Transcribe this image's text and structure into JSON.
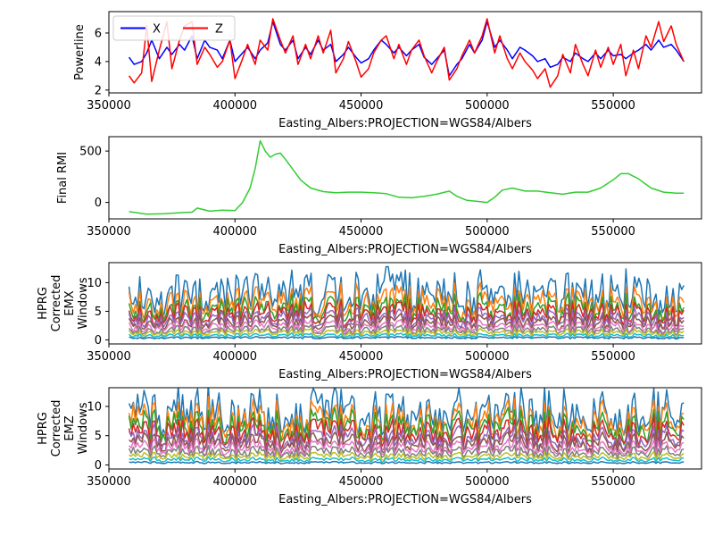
{
  "chart_data": [
    {
      "type": "line",
      "title": "",
      "xlabel": "Easting_Albers:PROJECTION=WGS84/Albers",
      "ylabel_lines": [
        "Powerline"
      ],
      "xlim": [
        350000,
        585000
      ],
      "ylim": [
        1.8,
        7.5
      ],
      "xticks": [
        350000,
        400000,
        450000,
        500000,
        550000
      ],
      "yticks": [
        2,
        4,
        6
      ],
      "legend": {
        "position": "top-left",
        "ncol": 2
      },
      "series": [
        {
          "name": "X",
          "color": "#0000ff",
          "x": [
            358000,
            360000,
            363000,
            365000,
            367000,
            370000,
            373000,
            375000,
            378000,
            380000,
            383000,
            385000,
            388000,
            390000,
            393000,
            395000,
            398000,
            400000,
            403000,
            405000,
            408000,
            410000,
            413000,
            415000,
            418000,
            420000,
            423000,
            425000,
            428000,
            430000,
            433000,
            435000,
            438000,
            440000,
            443000,
            445000,
            448000,
            450000,
            453000,
            455000,
            458000,
            460000,
            463000,
            465000,
            468000,
            470000,
            473000,
            475000,
            478000,
            480000,
            483000,
            485000,
            488000,
            490000,
            493000,
            495000,
            498000,
            500000,
            503000,
            505000,
            508000,
            510000,
            513000,
            515000,
            518000,
            520000,
            523000,
            525000,
            528000,
            530000,
            533000,
            535000,
            538000,
            540000,
            543000,
            545000,
            548000,
            550000,
            553000,
            555000,
            558000,
            560000,
            563000,
            565000,
            568000,
            570000,
            573000,
            575000,
            578000
          ],
          "y": [
            4.3,
            3.8,
            4.0,
            4.6,
            5.5,
            4.2,
            5.0,
            4.5,
            5.2,
            4.8,
            5.8,
            4.2,
            5.5,
            5.0,
            4.8,
            4.2,
            5.5,
            4.0,
            4.6,
            5.0,
            4.2,
            4.8,
            5.3,
            6.8,
            5.2,
            4.8,
            5.5,
            4.2,
            5.0,
            4.5,
            5.5,
            4.8,
            5.2,
            4.0,
            4.5,
            5.0,
            4.3,
            3.9,
            4.2,
            4.8,
            5.5,
            5.2,
            4.6,
            5.0,
            4.4,
            4.8,
            5.2,
            4.3,
            3.8,
            4.2,
            4.8,
            3.0,
            3.8,
            4.2,
            5.2,
            4.6,
            5.5,
            6.8,
            5.0,
            5.5,
            4.8,
            4.2,
            5.0,
            4.8,
            4.4,
            4.0,
            4.2,
            3.6,
            3.8,
            4.3,
            4.0,
            4.6,
            4.2,
            4.0,
            4.6,
            4.2,
            4.8,
            4.4,
            4.5,
            4.2,
            4.6,
            4.8,
            5.2,
            4.8,
            5.5,
            5.0,
            5.2,
            4.8,
            4.0
          ]
        },
        {
          "name": "Z",
          "color": "#ff0000",
          "x": [
            358000,
            360000,
            363000,
            365000,
            367000,
            370000,
            373000,
            375000,
            378000,
            380000,
            383000,
            385000,
            388000,
            390000,
            393000,
            395000,
            398000,
            400000,
            403000,
            405000,
            408000,
            410000,
            413000,
            415000,
            418000,
            420000,
            423000,
            425000,
            428000,
            430000,
            433000,
            435000,
            438000,
            440000,
            443000,
            445000,
            448000,
            450000,
            453000,
            455000,
            458000,
            460000,
            463000,
            465000,
            468000,
            470000,
            473000,
            475000,
            478000,
            480000,
            483000,
            485000,
            488000,
            490000,
            493000,
            495000,
            498000,
            500000,
            503000,
            505000,
            508000,
            510000,
            513000,
            515000,
            518000,
            520000,
            523000,
            525000,
            528000,
            530000,
            533000,
            535000,
            538000,
            540000,
            543000,
            545000,
            548000,
            550000,
            553000,
            555000,
            558000,
            560000,
            563000,
            565000,
            568000,
            570000,
            573000,
            575000,
            578000
          ],
          "y": [
            3.0,
            2.5,
            3.2,
            6.5,
            2.6,
            4.8,
            6.8,
            3.5,
            5.5,
            6.5,
            6.8,
            3.8,
            5.0,
            4.5,
            3.6,
            4.0,
            5.5,
            2.8,
            4.2,
            5.2,
            3.8,
            5.5,
            4.8,
            7.0,
            5.5,
            4.6,
            5.8,
            3.8,
            5.2,
            4.2,
            5.8,
            4.6,
            6.2,
            3.2,
            4.2,
            5.4,
            4.0,
            2.9,
            3.5,
            4.6,
            5.5,
            5.8,
            4.2,
            5.2,
            3.8,
            4.8,
            5.5,
            4.4,
            3.2,
            4.0,
            5.0,
            2.7,
            3.5,
            4.4,
            5.5,
            4.6,
            5.8,
            7.0,
            4.6,
            5.8,
            4.2,
            3.5,
            4.6,
            4.0,
            3.4,
            2.8,
            3.5,
            2.2,
            3.0,
            4.5,
            3.2,
            5.2,
            3.8,
            3.0,
            4.8,
            3.6,
            5.0,
            3.8,
            5.2,
            3.0,
            4.8,
            3.5,
            5.8,
            5.0,
            6.8,
            5.4,
            6.5,
            5.2,
            4.0
          ]
        }
      ]
    },
    {
      "type": "line",
      "title": "",
      "xlabel": "Easting_Albers:PROJECTION=WGS84/Albers",
      "ylabel_lines": [
        "Final RMI"
      ],
      "xlim": [
        350000,
        585000
      ],
      "ylim": [
        -160,
        640
      ],
      "xticks": [
        350000,
        400000,
        450000,
        500000,
        550000
      ],
      "yticks": [
        0,
        500
      ],
      "legend": null,
      "series": [
        {
          "name": "",
          "color": "#32cd32",
          "x": [
            358000,
            365000,
            372000,
            378000,
            383000,
            385000,
            390000,
            395000,
            400000,
            403000,
            406000,
            408000,
            410000,
            412000,
            414000,
            416000,
            418000,
            420000,
            423000,
            426000,
            430000,
            435000,
            440000,
            445000,
            450000,
            455000,
            460000,
            465000,
            470000,
            475000,
            480000,
            485000,
            488000,
            492000,
            496000,
            500000,
            503000,
            506000,
            510000,
            515000,
            520000,
            525000,
            530000,
            535000,
            540000,
            545000,
            550000,
            553000,
            556000,
            560000,
            565000,
            570000,
            575000,
            578000
          ],
          "y": [
            -90,
            -115,
            -110,
            -100,
            -95,
            -55,
            -85,
            -75,
            -80,
            0,
            140,
            330,
            600,
            500,
            440,
            470,
            480,
            420,
            320,
            220,
            140,
            105,
            95,
            100,
            100,
            95,
            85,
            50,
            45,
            60,
            80,
            110,
            60,
            20,
            10,
            0,
            50,
            120,
            140,
            110,
            110,
            95,
            80,
            100,
            100,
            140,
            220,
            280,
            280,
            230,
            140,
            100,
            90,
            90
          ]
        }
      ]
    },
    {
      "type": "line",
      "title": "",
      "xlabel": "Easting_Albers:PROJECTION=WGS84/Albers",
      "ylabel_lines": [
        "HPRG",
        "Corrected",
        "EMX",
        "Windows"
      ],
      "xlim": [
        350000,
        585000
      ],
      "ylim": [
        -0.7,
        13.5
      ],
      "xticks": [
        350000,
        400000,
        450000,
        500000,
        550000
      ],
      "yticks": [
        0,
        5,
        10
      ],
      "legend": null,
      "n_windows": 11,
      "window_colors": [
        "#1f77b4",
        "#ff7f0e",
        "#2ca02c",
        "#d62728",
        "#9467bd",
        "#8c564b",
        "#e377c2",
        "#7f7f7f",
        "#bcbd22",
        "#17becf",
        "#1f77b4"
      ],
      "x_range": [
        358000,
        578000
      ],
      "series_baselines": [
        8.2,
        6.6,
        5.4,
        4.6,
        3.8,
        3.1,
        2.4,
        1.8,
        1.3,
        0.8,
        0.4
      ],
      "peak_annotations": [
        {
          "x": 460000,
          "y": 12.8
        }
      ]
    },
    {
      "type": "line",
      "title": "",
      "xlabel": "Easting_Albers:PROJECTION=WGS84/Albers",
      "ylabel_lines": [
        "HPRG",
        "Corrected",
        "EMZ",
        "Windows"
      ],
      "xlim": [
        350000,
        585000
      ],
      "ylim": [
        -0.7,
        13.2
      ],
      "xticks": [
        350000,
        400000,
        450000,
        500000,
        550000
      ],
      "yticks": [
        0,
        5,
        10
      ],
      "legend": null,
      "n_windows": 11,
      "window_colors": [
        "#1f77b4",
        "#ff7f0e",
        "#2ca02c",
        "#d62728",
        "#9467bd",
        "#8c564b",
        "#e377c2",
        "#7f7f7f",
        "#bcbd22",
        "#17becf",
        "#1f77b4"
      ],
      "x_range": [
        358000,
        578000
      ],
      "series_baselines": [
        9.0,
        7.6,
        6.6,
        5.6,
        4.6,
        3.8,
        3.0,
        2.2,
        1.5,
        0.9,
        0.4
      ],
      "peak_annotations": [
        {
          "x": 460000,
          "y": 12.1
        }
      ]
    }
  ]
}
